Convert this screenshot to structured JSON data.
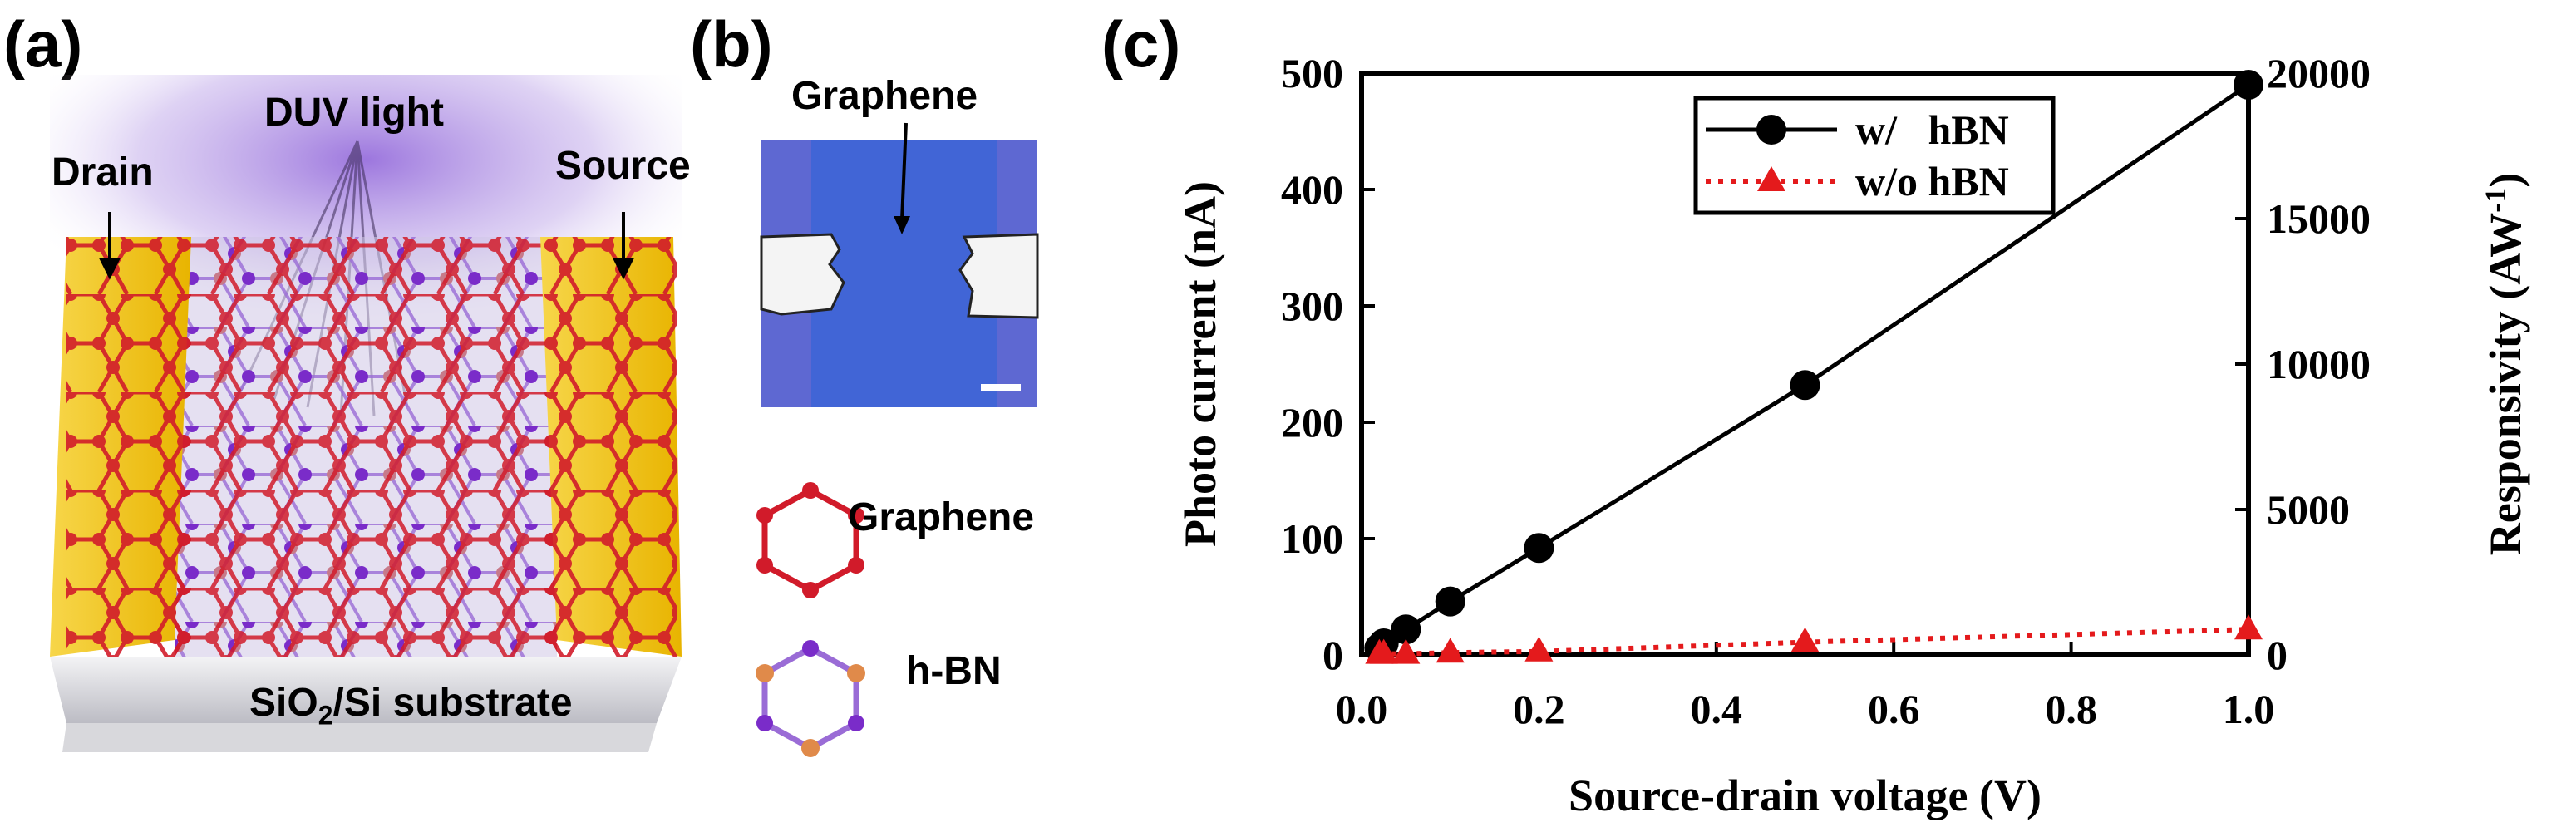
{
  "panels": {
    "a": {
      "label": "(a)",
      "light_label": "DUV light",
      "drain_label": "Drain",
      "source_label": "Source",
      "substrate_prefix": "SiO",
      "substrate_sub": "2",
      "substrate_suffix": "/Si substrate"
    },
    "b": {
      "label": "(b)",
      "graphene_label": "Graphene",
      "legend_graphene": "Graphene",
      "legend_hbn": "h-BN"
    },
    "c": {
      "label": "(c)"
    }
  },
  "colors": {
    "gold": "#f2c50c",
    "graphene_red": "#d11b2a",
    "hbn_purple": "#7a2cc9",
    "hbn_orange": "#e08a4a",
    "optical_blue": "#3f63cf",
    "series_hbn": "#000000",
    "series_no_hbn": "#e41a1c"
  },
  "chart_data": {
    "type": "line",
    "xlabel": "Source-drain voltage (V)",
    "ylabel": "Photo current (nA)",
    "y2label_main": "Responsivity (AW",
    "y2label_sup": "-1",
    "y2label_end": ")",
    "xlim": [
      0.0,
      1.0
    ],
    "ylim": [
      0,
      500
    ],
    "y2lim": [
      0,
      20000
    ],
    "xticks": [
      "0.0",
      "0.2",
      "0.4",
      "0.6",
      "0.8",
      "1.0"
    ],
    "yticks": [
      "0",
      "100",
      "200",
      "300",
      "400",
      "500"
    ],
    "y2ticks": [
      "0",
      "5000",
      "10000",
      "15000",
      "20000"
    ],
    "legend_position": "top-center",
    "series": [
      {
        "name": "w/   hBN",
        "marker": "circle",
        "line": "solid",
        "x": [
          0.02,
          0.025,
          0.05,
          0.1,
          0.2,
          0.5,
          1.0
        ],
        "y": [
          6,
          10,
          22,
          46,
          92,
          232,
          490
        ]
      },
      {
        "name": "w/o hBN",
        "marker": "triangle",
        "line": "dotted",
        "x": [
          0.02,
          0.025,
          0.05,
          0.1,
          0.2,
          0.5,
          1.0
        ],
        "y": [
          1,
          1,
          1,
          2,
          3,
          11,
          22
        ]
      }
    ]
  }
}
